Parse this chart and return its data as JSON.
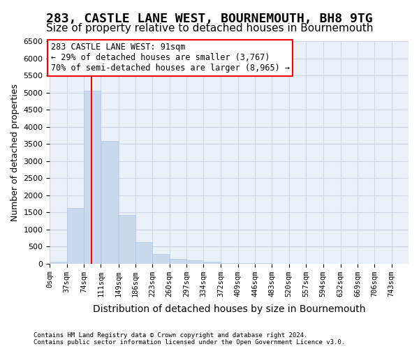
{
  "title1": "283, CASTLE LANE WEST, BOURNEMOUTH, BH8 9TG",
  "title2": "Size of property relative to detached houses in Bournemouth",
  "xlabel": "Distribution of detached houses by size in Bournemouth",
  "ylabel": "Number of detached properties",
  "footer1": "Contains HM Land Registry data © Crown copyright and database right 2024.",
  "footer2": "Contains public sector information licensed under the Open Government Licence v3.0.",
  "annotation_title": "283 CASTLE LANE WEST: 91sqm",
  "annotation_line1": "← 29% of detached houses are smaller (3,767)",
  "annotation_line2": "70% of semi-detached houses are larger (8,965) →",
  "bar_color": "#c9d9ed",
  "bar_edge_color": "#aec6e0",
  "redline_x": 91,
  "categories": [
    "0sqm",
    "37sqm",
    "74sqm",
    "111sqm",
    "149sqm",
    "186sqm",
    "223sqm",
    "260sqm",
    "297sqm",
    "334sqm",
    "372sqm",
    "409sqm",
    "446sqm",
    "483sqm",
    "520sqm",
    "557sqm",
    "594sqm",
    "632sqm",
    "669sqm",
    "706sqm",
    "743sqm"
  ],
  "bin_edges": [
    0,
    37,
    74,
    111,
    149,
    186,
    223,
    260,
    297,
    334,
    372,
    409,
    446,
    483,
    520,
    557,
    594,
    632,
    669,
    706,
    743,
    780
  ],
  "values": [
    60,
    1630,
    5060,
    3590,
    1430,
    620,
    270,
    130,
    90,
    60,
    10,
    10,
    5,
    0,
    0,
    0,
    0,
    0,
    0,
    0,
    0
  ],
  "ylim": [
    0,
    6500
  ],
  "yticks": [
    0,
    500,
    1000,
    1500,
    2000,
    2500,
    3000,
    3500,
    4000,
    4500,
    5000,
    5500,
    6000,
    6500
  ],
  "bg_color": "#ffffff",
  "grid_color": "#d0d8e8",
  "ax_bg_color": "#eaf0f8",
  "title1_fontsize": 13,
  "title2_fontsize": 11,
  "annotation_fontsize": 8.5,
  "xlabel_fontsize": 10,
  "ylabel_fontsize": 9
}
